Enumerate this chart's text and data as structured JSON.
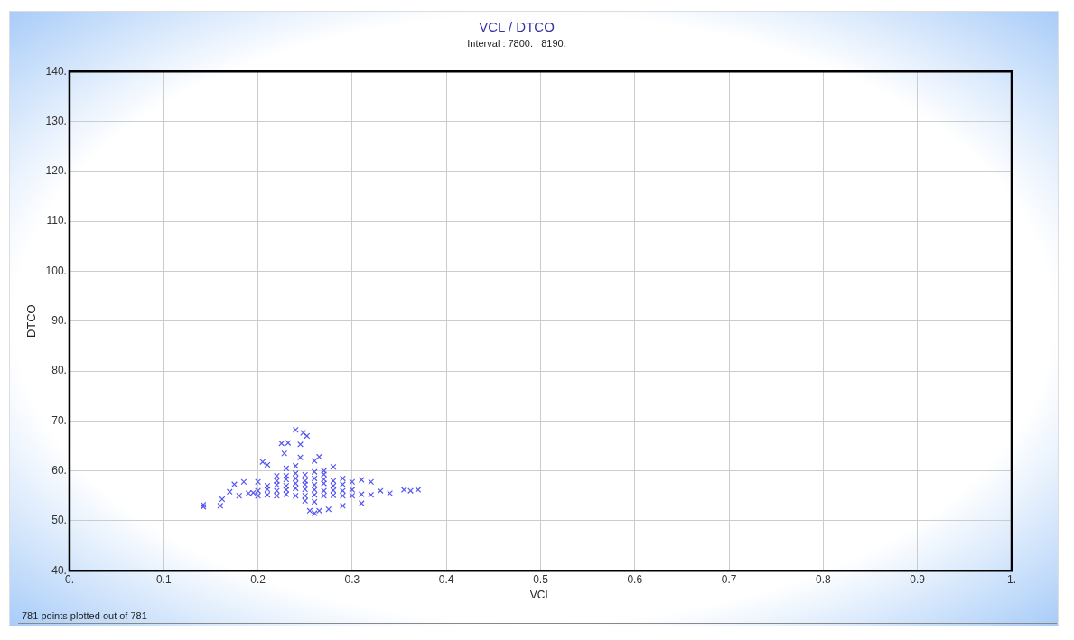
{
  "chart_data": {
    "type": "scatter",
    "title": "VCL / DTCO",
    "subtitle": "Interval : 7800. : 8190.",
    "xlabel": "VCL",
    "ylabel": "DTCO",
    "annotations": [
      "781 points plotted out of 781"
    ],
    "xlim": [
      0,
      1
    ],
    "xticks": [
      {
        "value": 0,
        "label": "0."
      },
      0.1,
      0.2,
      0.3,
      0.4,
      0.5,
      0.6,
      0.7,
      0.8,
      0.9,
      {
        "value": 1,
        "label": "1."
      }
    ],
    "ylim": [
      40,
      140
    ],
    "yticks": [
      {
        "value": 40,
        "label": "40."
      },
      {
        "value": 50,
        "label": "50."
      },
      {
        "value": 60,
        "label": "60."
      },
      {
        "value": 70,
        "label": "70."
      },
      {
        "value": 80,
        "label": "80."
      },
      {
        "value": 90,
        "label": "90."
      },
      {
        "value": 100,
        "label": "100."
      },
      {
        "value": 110,
        "label": "110."
      },
      {
        "value": 120,
        "label": "120."
      },
      {
        "value": 130,
        "label": "130."
      },
      {
        "value": 140,
        "label": "140."
      }
    ],
    "grid": true,
    "legend": false,
    "marker": "cross",
    "series": [
      {
        "color": "#3c3cf0",
        "x": [
          0.142,
          0.142,
          0.16,
          0.162,
          0.17,
          0.175,
          0.185,
          0.195,
          0.2,
          0.205,
          0.21,
          0.22,
          0.23,
          0.225,
          0.232,
          0.228,
          0.24,
          0.245,
          0.248,
          0.252,
          0.24,
          0.245,
          0.26,
          0.265,
          0.27,
          0.28,
          0.29,
          0.3,
          0.31,
          0.32,
          0.33,
          0.34,
          0.355,
          0.362,
          0.37,
          0.26,
          0.265,
          0.275,
          0.255,
          0.29,
          0.31,
          0.18,
          0.19,
          0.2,
          0.21,
          0.22,
          0.23,
          0.24,
          0.25,
          0.26,
          0.27,
          0.28,
          0.29,
          0.3,
          0.31,
          0.32,
          0.2,
          0.21,
          0.22,
          0.23,
          0.24,
          0.25,
          0.26,
          0.27,
          0.28,
          0.29,
          0.3,
          0.21,
          0.22,
          0.23,
          0.24,
          0.25,
          0.26,
          0.27,
          0.28,
          0.29,
          0.22,
          0.23,
          0.24,
          0.25,
          0.26,
          0.27,
          0.28,
          0.23,
          0.24,
          0.25,
          0.26,
          0.27,
          0.25,
          0.26
        ],
        "values": [
          52.8,
          53.2,
          53,
          54.3,
          55.8,
          57.3,
          57.8,
          55.6,
          57.8,
          61.8,
          61.2,
          59,
          60.5,
          65.5,
          65.6,
          63.5,
          68.2,
          65.3,
          67.6,
          67,
          61,
          62.7,
          62,
          62.8,
          60,
          60.8,
          58.5,
          57.8,
          58.2,
          57.8,
          56,
          55.5,
          56.2,
          56,
          56.2,
          51.5,
          52,
          52.3,
          52,
          53,
          53.5,
          55,
          55.5,
          55,
          55.2,
          55,
          55.3,
          55,
          55,
          55.2,
          55,
          55.1,
          55,
          55,
          55.3,
          55.2,
          56,
          56.3,
          56,
          56.2,
          56.5,
          56.3,
          56.2,
          56,
          56.1,
          56,
          56.2,
          57,
          57.2,
          57,
          57.5,
          57.3,
          57.2,
          57.5,
          57,
          57.3,
          58,
          58.3,
          58.5,
          58,
          58.5,
          58.3,
          58,
          59,
          59.5,
          59.2,
          59.8,
          59.3,
          54,
          53.8
        ]
      }
    ]
  }
}
